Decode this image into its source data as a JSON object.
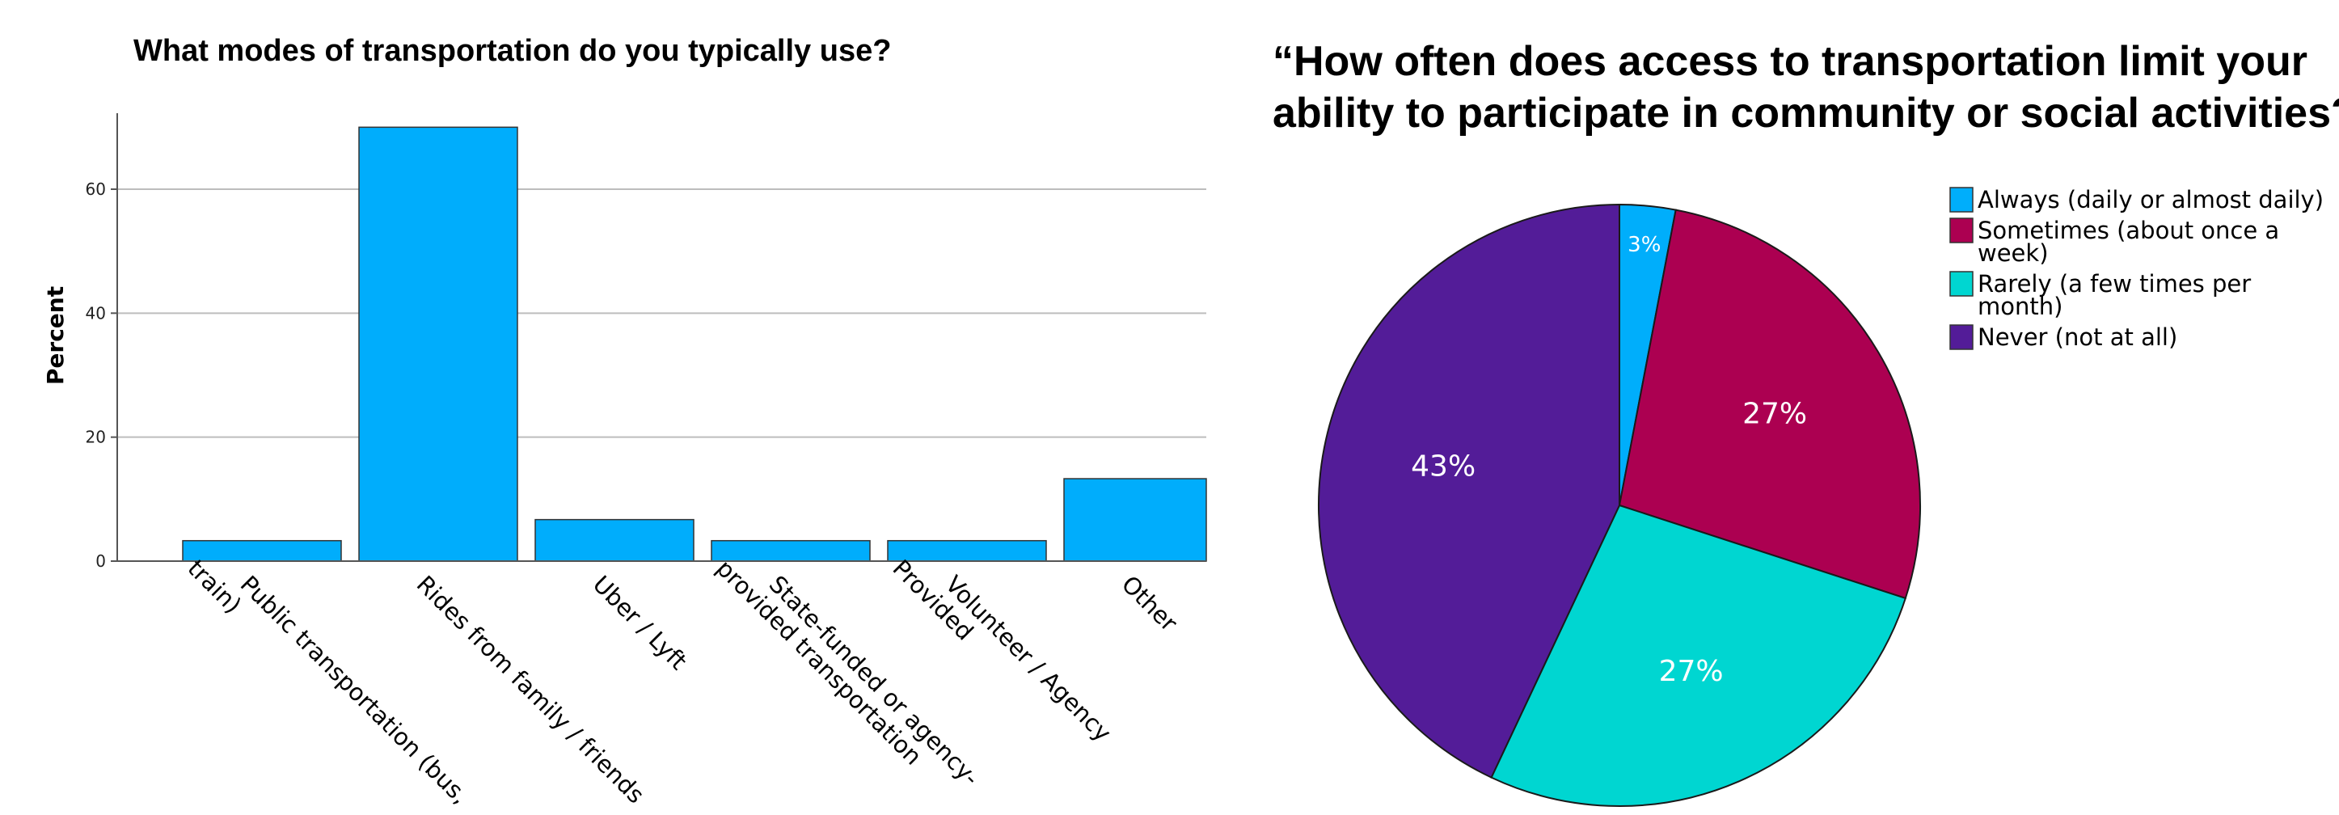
{
  "chart_data": [
    {
      "type": "bar",
      "title": "What modes of transportation do you typically use?",
      "ylabel": "Percent",
      "xlabel": "",
      "categories": [
        [
          "Public transportation (bus,",
          "train)"
        ],
        [
          "Rides from family / friends"
        ],
        [
          "Uber / Lyft"
        ],
        [
          "State-funded or agency-",
          "provided transportation"
        ],
        [
          "Volunteer / Agency",
          "Provided"
        ],
        [
          "Other"
        ]
      ],
      "values": [
        3.3,
        70,
        6.7,
        3.3,
        3.3,
        13.3
      ],
      "yticks": [
        0,
        20,
        40,
        60
      ],
      "ylim": [
        0,
        72
      ],
      "grid": true,
      "bar_color": "#00adfc"
    },
    {
      "type": "pie",
      "title": [
        "“How often does access to transportation limit your",
        "ability to participate in community or social activities?”"
      ],
      "slices": [
        {
          "label": [
            "Always (daily or almost daily)"
          ],
          "value": 3,
          "display": "3%",
          "color": "#00aefb"
        },
        {
          "label": [
            "Sometimes (about once a",
            "week)"
          ],
          "value": 27,
          "display": "27%",
          "color": "#ac0051"
        },
        {
          "label": [
            "Rarely (a few times per",
            "month)"
          ],
          "value": 27,
          "display": "27%",
          "color": "#00d6d1"
        },
        {
          "label": [
            "Never (not at all)"
          ],
          "value": 43,
          "display": "43%",
          "color": "#531c98"
        }
      ],
      "legend_position": "right"
    }
  ]
}
